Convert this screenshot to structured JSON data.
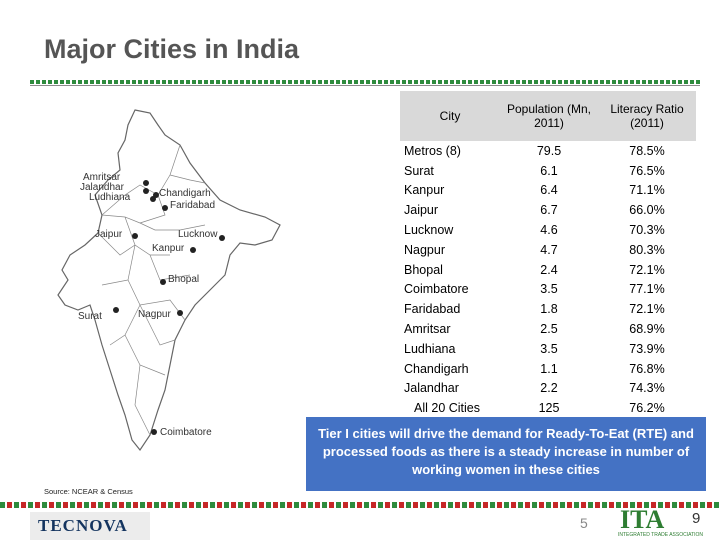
{
  "title": "Major Cities in India",
  "source": "Source: NCEAR & Census",
  "map_labels": {
    "amritsar": "Amritsar",
    "jalandhar": "Jalandhar",
    "ludhiana": "Ludhiana",
    "chandigarh": "Chandigarh",
    "faridabad": "Faridabad",
    "jaipur": "Jaipur",
    "lucknow": "Lucknow",
    "kanpur": "Kanpur",
    "bhopal": "Bhopal",
    "surat": "Surat",
    "nagpur": "Nagpur",
    "coimbatore": "Coimbatore"
  },
  "table": {
    "headers": [
      "City",
      "Population (Mn, 2011)",
      "Literacy Ratio (2011)"
    ],
    "rows": [
      {
        "city": "Metros (8)",
        "pop": "79.5",
        "lit": "78.5%"
      },
      {
        "city": "Surat",
        "pop": "6.1",
        "lit": "76.5%"
      },
      {
        "city": "Kanpur",
        "pop": "6.4",
        "lit": "71.1%"
      },
      {
        "city": "Jaipur",
        "pop": "6.7",
        "lit": "66.0%"
      },
      {
        "city": "Lucknow",
        "pop": "4.6",
        "lit": "70.3%"
      },
      {
        "city": "Nagpur",
        "pop": "4.7",
        "lit": "80.3%"
      },
      {
        "city": "Bhopal",
        "pop": "2.4",
        "lit": "72.1%"
      },
      {
        "city": "Coimbatore",
        "pop": "3.5",
        "lit": "77.1%"
      },
      {
        "city": "Faridabad",
        "pop": "1.8",
        "lit": "72.1%"
      },
      {
        "city": "Amritsar",
        "pop": "2.5",
        "lit": "68.9%"
      },
      {
        "city": "Ludhiana",
        "pop": "3.5",
        "lit": "73.9%"
      },
      {
        "city": "Chandigarh",
        "pop": "1.1",
        "lit": "76.8%"
      },
      {
        "city": "Jalandhar",
        "pop": "2.2",
        "lit": "74.3%"
      }
    ],
    "total": {
      "city": "All 20 Cities",
      "pop": "125",
      "lit": "76.2%"
    }
  },
  "callout": "Tier I cities will drive the demand for Ready-To-Eat (RTE) and processed foods as there is a steady increase in number of working women in these cities",
  "footer": {
    "left_logo": "TECNOVA",
    "page_number": "5",
    "right_logo": "ITA",
    "right_logo_sub": "INTEGRATED TRADE ASSOCIATION",
    "right_page": "9"
  },
  "colors": {
    "callout_bg": "#4472c4",
    "header_bg": "#d9d9d9",
    "title": "#555555",
    "rule_green": "#2e8b3d"
  }
}
